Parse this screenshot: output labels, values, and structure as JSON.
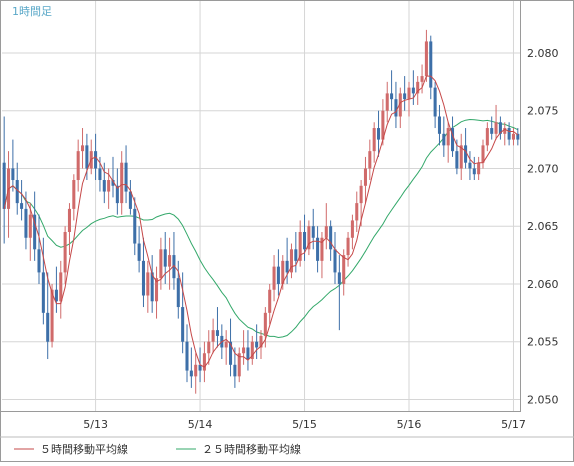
{
  "timeframe_label": "1時間足",
  "legend": {
    "ma5_label": "５時間移動平均線",
    "ma25_label": "２５時間移動平均線"
  },
  "colors": {
    "up": "#d06a6a",
    "down": "#3d6fa8",
    "ma5": "#c64848",
    "ma25": "#33a86a",
    "grid": "#d6d6d6",
    "border": "#9a9a9a",
    "timeframe": "#5aa8c8"
  },
  "chart_data": {
    "type": "candlestick",
    "ylim": [
      2.049,
      2.0845
    ],
    "y_ticks": [
      "2.050",
      "2.055",
      "2.060",
      "2.065",
      "2.070",
      "2.075",
      "2.080"
    ],
    "x_ticks": [
      {
        "label": "5/13",
        "index": 21
      },
      {
        "label": "5/14",
        "index": 45
      },
      {
        "label": "5/15",
        "index": 69
      },
      {
        "label": "5/16",
        "index": 93
      },
      {
        "label": "5/17",
        "index": 117
      }
    ],
    "grid": true,
    "legend_position": "bottom",
    "series": [
      {
        "name": "５時間移動平均線",
        "type": "moving_average",
        "period": 5
      },
      {
        "name": "２５時間移動平均線",
        "type": "moving_average",
        "period": 25
      }
    ],
    "ohlc": [
      [
        2.0705,
        2.0745,
        2.0635,
        2.0665
      ],
      [
        2.0665,
        2.0715,
        2.064,
        2.07
      ],
      [
        2.07,
        2.0725,
        2.068,
        2.069
      ],
      [
        2.069,
        2.0705,
        2.066,
        2.067
      ],
      [
        2.067,
        2.069,
        2.0655,
        2.0665
      ],
      [
        2.0665,
        2.068,
        2.063,
        2.064
      ],
      [
        2.064,
        2.067,
        2.062,
        2.066
      ],
      [
        2.066,
        2.068,
        2.062,
        2.063
      ],
      [
        2.063,
        2.066,
        2.06,
        2.061
      ],
      [
        2.061,
        2.064,
        2.0565,
        2.0575
      ],
      [
        2.0575,
        2.061,
        2.0535,
        2.055
      ],
      [
        2.055,
        2.06,
        2.0545,
        2.0595
      ],
      [
        2.0595,
        2.0615,
        2.0575,
        2.0585
      ],
      [
        2.0585,
        2.062,
        2.057,
        2.061
      ],
      [
        2.061,
        2.065,
        2.06,
        2.0645
      ],
      [
        2.0645,
        2.067,
        2.0625,
        2.0665
      ],
      [
        2.0665,
        2.0695,
        2.0655,
        2.069
      ],
      [
        2.069,
        2.0725,
        2.068,
        2.0715
      ],
      [
        2.0715,
        2.0735,
        2.07,
        2.072
      ],
      [
        2.072,
        2.073,
        2.069,
        2.07
      ],
      [
        2.07,
        2.0725,
        2.0695,
        2.0715
      ],
      [
        2.0715,
        2.073,
        2.069,
        2.07
      ],
      [
        2.07,
        2.071,
        2.068,
        2.069
      ],
      [
        2.069,
        2.0705,
        2.067,
        2.068
      ],
      [
        2.068,
        2.07,
        2.0665,
        2.069
      ],
      [
        2.069,
        2.071,
        2.0675,
        2.0685
      ],
      [
        2.0685,
        2.07,
        2.066,
        2.067
      ],
      [
        2.067,
        2.0715,
        2.066,
        2.0705
      ],
      [
        2.0705,
        2.072,
        2.067,
        2.068
      ],
      [
        2.068,
        2.069,
        2.066,
        2.0665
      ],
      [
        2.0665,
        2.0675,
        2.0625,
        2.0635
      ],
      [
        2.0635,
        2.065,
        2.061,
        2.062
      ],
      [
        2.062,
        2.064,
        2.058,
        2.059
      ],
      [
        2.059,
        2.062,
        2.0575,
        2.061
      ],
      [
        2.061,
        2.0625,
        2.0575,
        2.0585
      ],
      [
        2.0585,
        2.0615,
        2.057,
        2.0605
      ],
      [
        2.0605,
        2.064,
        2.0595,
        2.063
      ],
      [
        2.063,
        2.0645,
        2.06,
        2.0615
      ],
      [
        2.0615,
        2.064,
        2.0595,
        2.0625
      ],
      [
        2.0625,
        2.0645,
        2.0595,
        2.0605
      ],
      [
        2.0605,
        2.062,
        2.057,
        2.058
      ],
      [
        2.058,
        2.061,
        2.054,
        2.055
      ],
      [
        2.055,
        2.0565,
        2.0515,
        2.0525
      ],
      [
        2.0525,
        2.0545,
        2.051,
        2.052
      ],
      [
        2.052,
        2.054,
        2.0505,
        2.053
      ],
      [
        2.053,
        2.0545,
        2.0515,
        2.0525
      ],
      [
        2.0525,
        2.055,
        2.0515,
        2.054
      ],
      [
        2.054,
        2.056,
        2.053,
        2.055
      ],
      [
        2.055,
        2.057,
        2.054,
        2.056
      ],
      [
        2.056,
        2.058,
        2.0545,
        2.0555
      ],
      [
        2.0555,
        2.0565,
        2.0535,
        2.0545
      ],
      [
        2.0545,
        2.056,
        2.053,
        2.055
      ],
      [
        2.055,
        2.057,
        2.052,
        2.053
      ],
      [
        2.053,
        2.0545,
        2.051,
        2.052
      ],
      [
        2.052,
        2.0545,
        2.0515,
        2.054
      ],
      [
        2.054,
        2.056,
        2.053,
        2.0545
      ],
      [
        2.0545,
        2.056,
        2.0525,
        2.0535
      ],
      [
        2.0535,
        2.0555,
        2.053,
        2.055
      ],
      [
        2.055,
        2.0565,
        2.0535,
        2.0545
      ],
      [
        2.0545,
        2.056,
        2.0535,
        2.0555
      ],
      [
        2.0555,
        2.058,
        2.0545,
        2.0575
      ],
      [
        2.0575,
        2.06,
        2.0565,
        2.0595
      ],
      [
        2.0595,
        2.0625,
        2.0585,
        2.0615
      ],
      [
        2.0615,
        2.063,
        2.059,
        2.06
      ],
      [
        2.06,
        2.0625,
        2.0595,
        2.062
      ],
      [
        2.062,
        2.064,
        2.06,
        2.061
      ],
      [
        2.061,
        2.0635,
        2.0605,
        2.063
      ],
      [
        2.063,
        2.0645,
        2.061,
        2.062
      ],
      [
        2.062,
        2.0655,
        2.0615,
        2.0645
      ],
      [
        2.0645,
        2.066,
        2.062,
        2.063
      ],
      [
        2.063,
        2.0655,
        2.0625,
        2.065
      ],
      [
        2.065,
        2.0665,
        2.063,
        2.064
      ],
      [
        2.064,
        2.065,
        2.061,
        2.062
      ],
      [
        2.062,
        2.0645,
        2.0605,
        2.064
      ],
      [
        2.064,
        2.067,
        2.063,
        2.065
      ],
      [
        2.065,
        2.0655,
        2.062,
        2.063
      ],
      [
        2.063,
        2.0645,
        2.06,
        2.061
      ],
      [
        2.061,
        2.0625,
        2.056,
        2.06
      ],
      [
        2.06,
        2.063,
        2.059,
        2.0625
      ],
      [
        2.0625,
        2.0645,
        2.0615,
        2.064
      ],
      [
        2.064,
        2.066,
        2.063,
        2.0655
      ],
      [
        2.0655,
        2.068,
        2.0645,
        2.067
      ],
      [
        2.067,
        2.069,
        2.065,
        2.0685
      ],
      [
        2.0685,
        2.071,
        2.067,
        2.07
      ],
      [
        2.07,
        2.0725,
        2.069,
        2.0715
      ],
      [
        2.0715,
        2.074,
        2.0705,
        2.0735
      ],
      [
        2.0735,
        2.075,
        2.071,
        2.0725
      ],
      [
        2.0725,
        2.076,
        2.072,
        2.075
      ],
      [
        2.075,
        2.0775,
        2.074,
        2.0765
      ],
      [
        2.0765,
        2.0785,
        2.075,
        2.076
      ],
      [
        2.076,
        2.0775,
        2.0735,
        2.0745
      ],
      [
        2.0745,
        2.077,
        2.0735,
        2.0765
      ],
      [
        2.0765,
        2.078,
        2.075,
        2.076
      ],
      [
        2.076,
        2.0775,
        2.0745,
        2.077
      ],
      [
        2.077,
        2.0785,
        2.0755,
        2.0765
      ],
      [
        2.0765,
        2.078,
        2.0755,
        2.0775
      ],
      [
        2.0775,
        2.079,
        2.0765,
        2.078
      ],
      [
        2.078,
        2.082,
        2.0775,
        2.081
      ],
      [
        2.081,
        2.0815,
        2.076,
        2.077
      ],
      [
        2.077,
        2.0775,
        2.0735,
        2.0745
      ],
      [
        2.0745,
        2.0755,
        2.072,
        2.073
      ],
      [
        2.073,
        2.0745,
        2.071,
        2.072
      ],
      [
        2.072,
        2.074,
        2.0705,
        2.0735
      ],
      [
        2.0735,
        2.0745,
        2.071,
        2.0715
      ],
      [
        2.0715,
        2.0725,
        2.0695,
        2.07
      ],
      [
        2.07,
        2.073,
        2.069,
        2.072
      ],
      [
        2.072,
        2.0735,
        2.07,
        2.0705
      ],
      [
        2.0705,
        2.0715,
        2.069,
        2.07
      ],
      [
        2.07,
        2.071,
        2.069,
        2.0695
      ],
      [
        2.0695,
        2.071,
        2.069,
        2.0705
      ],
      [
        2.0705,
        2.0725,
        2.07,
        2.072
      ],
      [
        2.072,
        2.074,
        2.0715,
        2.0735
      ],
      [
        2.0735,
        2.0745,
        2.0725,
        2.073
      ],
      [
        2.073,
        2.0755,
        2.0725,
        2.074
      ],
      [
        2.074,
        2.0745,
        2.0725,
        2.073
      ],
      [
        2.073,
        2.074,
        2.072,
        2.0735
      ],
      [
        2.0735,
        2.074,
        2.072,
        2.0725
      ],
      [
        2.0725,
        2.0735,
        2.072,
        2.073
      ],
      [
        2.073,
        2.0735,
        2.072,
        2.0725
      ]
    ]
  }
}
